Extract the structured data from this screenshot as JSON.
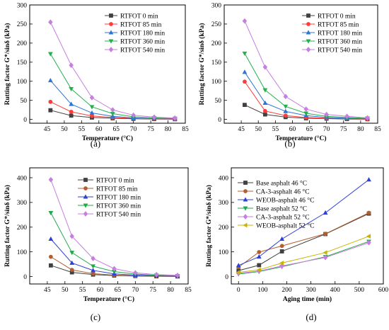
{
  "chart_data": [
    {
      "type": "line",
      "panel_label": "(a)",
      "xlabel": "Temperature (°C)",
      "ylabel": "Rutting factor G*/sinδ (kPa)",
      "x": [
        46,
        52,
        58,
        64,
        70,
        76,
        82
      ],
      "xlim": [
        40,
        85
      ],
      "ylim": [
        -10,
        300
      ],
      "xticks": [
        45,
        50,
        55,
        60,
        65,
        70,
        75,
        80,
        85
      ],
      "yticks": [
        0,
        50,
        100,
        150,
        200,
        250,
        300
      ],
      "legend": "top-right",
      "series": [
        {
          "name": "RTFOT 0 min",
          "color": "#404040",
          "marker": "square",
          "values": [
            24,
            10,
            5,
            3,
            1.5,
            1,
            0.5
          ]
        },
        {
          "name": "RTFOT 85 min",
          "color": "#ff3b3b",
          "marker": "circle",
          "values": [
            46,
            20,
            9,
            5,
            2.5,
            1.5,
            1
          ]
        },
        {
          "name": "RTFOT 180 min",
          "color": "#2c74d6",
          "marker": "triangle-up",
          "values": [
            102,
            40,
            17,
            8,
            4,
            2,
            1.5
          ]
        },
        {
          "name": "RTFOT 360 min",
          "color": "#22b14c",
          "marker": "triangle-down",
          "values": [
            172,
            80,
            33,
            15,
            7,
            4,
            2.5
          ]
        },
        {
          "name": "RTFOT 540 min",
          "color": "#c77ee0",
          "marker": "diamond",
          "values": [
            255,
            142,
            57,
            25,
            11,
            6,
            3.5
          ]
        }
      ]
    },
    {
      "type": "line",
      "panel_label": "(b)",
      "xlabel": "Temperature (°C)",
      "ylabel": "Rutting factor G*/sinδ (kPa)",
      "x": [
        46,
        52,
        58,
        64,
        70,
        76,
        82
      ],
      "xlim": [
        40,
        85
      ],
      "ylim": [
        -10,
        300
      ],
      "xticks": [
        45,
        50,
        55,
        60,
        65,
        70,
        75,
        80,
        85
      ],
      "yticks": [
        0,
        50,
        100,
        150,
        200,
        250,
        300
      ],
      "legend": "top-right",
      "series": [
        {
          "name": "RTFOT 0 min",
          "color": "#404040",
          "marker": "square",
          "values": [
            38,
            13,
            6,
            3,
            2,
            1,
            0.5
          ]
        },
        {
          "name": "RTFOT 85 min",
          "color": "#ff3b3b",
          "marker": "circle",
          "values": [
            99,
            22,
            10,
            5,
            3,
            2,
            1
          ]
        },
        {
          "name": "RTFOT 180 min",
          "color": "#2c74d6",
          "marker": "triangle-up",
          "values": [
            124,
            43,
            21,
            10,
            5,
            3,
            2
          ]
        },
        {
          "name": "RTFOT 360 min",
          "color": "#22b14c",
          "marker": "triangle-down",
          "values": [
            173,
            77,
            34,
            16,
            8,
            5,
            3
          ]
        },
        {
          "name": "RTFOT 540 min",
          "color": "#c77ee0",
          "marker": "diamond",
          "values": [
            258,
            137,
            60,
            27,
            13,
            8,
            4
          ]
        }
      ]
    },
    {
      "type": "line",
      "panel_label": "(c)",
      "xlabel": "Temperature (°C)",
      "ylabel": "Rutting factor G*/sinδ (kPa)",
      "x": [
        46,
        52,
        58,
        64,
        70,
        76,
        82
      ],
      "xlim": [
        40,
        85
      ],
      "ylim": [
        -30,
        440
      ],
      "xticks": [
        45,
        50,
        55,
        60,
        65,
        70,
        75,
        80,
        85
      ],
      "yticks": [
        0,
        100,
        200,
        300,
        400
      ],
      "legend": "top-right",
      "series": [
        {
          "name": "RTFOT 0 min",
          "color": "#404040",
          "marker": "square",
          "values": [
            45,
            17,
            8,
            4,
            2,
            1,
            0.5
          ]
        },
        {
          "name": "RTFOT 85 min",
          "color": "#b06030",
          "marker": "circle",
          "values": [
            80,
            27,
            12,
            6,
            3,
            2,
            1
          ]
        },
        {
          "name": "RTFOT 180 min",
          "color": "#2c3fd6",
          "marker": "triangle-up",
          "values": [
            152,
            55,
            25,
            11,
            6,
            3,
            2
          ]
        },
        {
          "name": "RTFOT 360 min",
          "color": "#22a84c",
          "marker": "triangle-down",
          "values": [
            258,
            97,
            42,
            20,
            10,
            5,
            3
          ]
        },
        {
          "name": "RTFOT 540 min",
          "color": "#c77ee0",
          "marker": "diamond",
          "values": [
            392,
            163,
            73,
            32,
            15,
            8,
            5
          ]
        }
      ]
    },
    {
      "type": "line",
      "panel_label": "(d)",
      "xlabel": "Aging time (min)",
      "ylabel": "Rutting factor G*/sinδ (kPa)",
      "x": [
        0,
        85,
        180,
        360,
        540
      ],
      "xlim": [
        -30,
        600
      ],
      "ylim": [
        -30,
        440
      ],
      "xticks": [
        0,
        100,
        200,
        300,
        400,
        500,
        600
      ],
      "yticks": [
        0,
        100,
        200,
        300,
        400
      ],
      "legend": "top-left",
      "series": [
        {
          "name": "Base asphalt 46 °C",
          "color": "#404040",
          "marker": "square",
          "values": [
            24,
            46,
            102,
            172,
            255
          ]
        },
        {
          "name": "CA-3-asphalt 46 °C",
          "color": "#b06030",
          "marker": "circle",
          "values": [
            38,
            99,
            124,
            173,
            258
          ]
        },
        {
          "name": "WEOB-asphalt 46 °C",
          "color": "#2c3fd6",
          "marker": "triangle-up",
          "values": [
            45,
            80,
            152,
            258,
            392
          ]
        },
        {
          "name": "Base asphalt 52 °C",
          "color": "#22a84c",
          "marker": "triangle-down",
          "values": [
            10,
            20,
            40,
            80,
            142
          ]
        },
        {
          "name": "CA-3-asphalt 52 °C",
          "color": "#c77ee0",
          "marker": "diamond",
          "values": [
            13,
            22,
            43,
            77,
            137
          ]
        },
        {
          "name": "WEOB-asphalt 52 °C",
          "color": "#c8b400",
          "marker": "triangle-left",
          "values": [
            17,
            27,
            55,
            97,
            163
          ]
        }
      ]
    }
  ]
}
